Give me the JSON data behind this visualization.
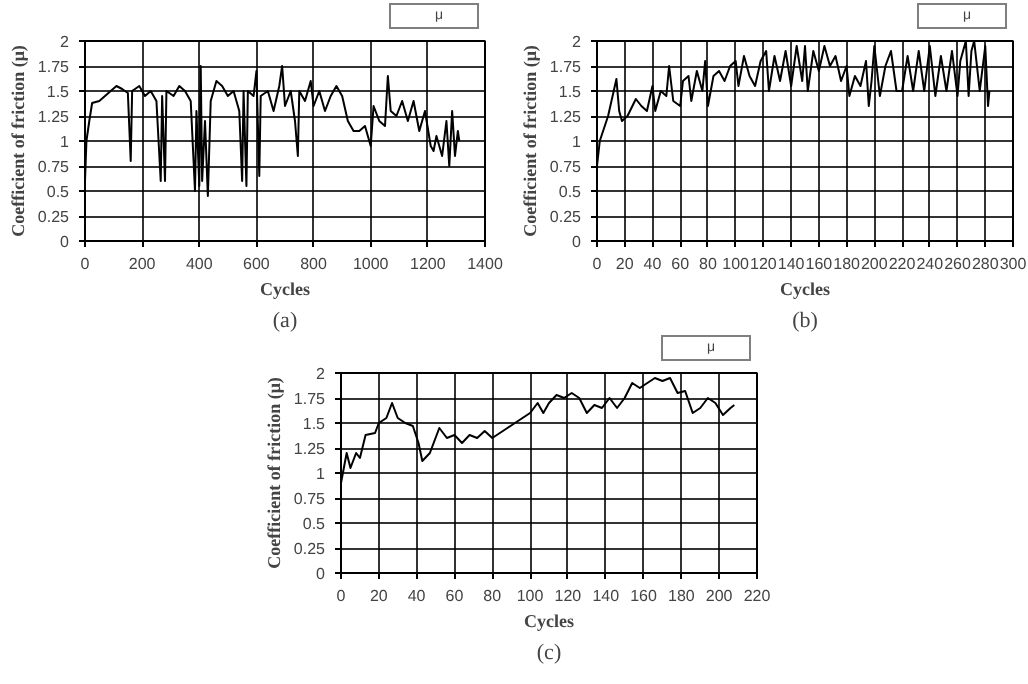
{
  "chart_data": [
    {
      "type": "line",
      "xlabel": "Cycles",
      "ylabel": "Coefficient of friction (μ)",
      "annotations": [
        "(a)"
      ],
      "grid": true,
      "legend": "top right",
      "xlim": [
        0,
        1400
      ],
      "xticks": [
        0,
        200,
        400,
        600,
        800,
        1000,
        1200,
        1400
      ],
      "ylim": [
        0,
        2
      ],
      "yticks": [
        0,
        0.25,
        0.5,
        0.75,
        1,
        1.25,
        1.5,
        1.75,
        2
      ],
      "series": [
        {
          "name": "μ",
          "color": "#000000",
          "x": [
            0,
            5,
            15,
            25,
            50,
            70,
            90,
            110,
            130,
            150,
            160,
            165,
            190,
            210,
            230,
            250,
            265,
            270,
            280,
            285,
            310,
            330,
            350,
            370,
            385,
            390,
            400,
            405,
            410,
            420,
            430,
            440,
            460,
            480,
            500,
            520,
            540,
            550,
            555,
            565,
            570,
            590,
            600,
            610,
            615,
            640,
            660,
            680,
            690,
            700,
            720,
            735,
            745,
            750,
            770,
            790,
            800,
            820,
            840,
            860,
            880,
            900,
            920,
            940,
            960,
            980,
            1000,
            1010,
            1030,
            1050,
            1060,
            1070,
            1090,
            1110,
            1130,
            1150,
            1170,
            1190,
            1210,
            1220,
            1230,
            1250,
            1265,
            1275,
            1285,
            1295,
            1305,
            1310
          ],
          "values": [
            0.6,
            1.0,
            1.2,
            1.38,
            1.4,
            1.45,
            1.5,
            1.55,
            1.52,
            1.48,
            0.8,
            1.5,
            1.55,
            1.45,
            1.5,
            1.4,
            0.6,
            1.45,
            0.6,
            1.5,
            1.45,
            1.55,
            1.5,
            1.4,
            0.5,
            1.3,
            0.55,
            1.75,
            0.6,
            1.2,
            0.45,
            1.4,
            1.6,
            1.55,
            1.45,
            1.5,
            1.3,
            0.6,
            1.5,
            0.55,
            1.5,
            1.45,
            1.7,
            0.65,
            1.45,
            1.5,
            1.3,
            1.55,
            1.75,
            1.35,
            1.5,
            1.2,
            0.85,
            1.5,
            1.4,
            1.6,
            1.35,
            1.5,
            1.3,
            1.45,
            1.55,
            1.45,
            1.2,
            1.1,
            1.1,
            1.15,
            0.95,
            1.35,
            1.2,
            1.15,
            1.65,
            1.3,
            1.25,
            1.4,
            1.2,
            1.4,
            1.1,
            1.3,
            0.95,
            0.9,
            1.05,
            0.85,
            1.2,
            0.75,
            1.3,
            0.85,
            1.1,
            1.0
          ]
        }
      ]
    },
    {
      "type": "line",
      "xlabel": "Cycles",
      "ylabel": "Coefficient of friction (μ)",
      "annotations": [
        "(b)"
      ],
      "grid": true,
      "legend": "top right",
      "xlim": [
        0,
        300
      ],
      "xticks": [
        0,
        20,
        40,
        60,
        80,
        100,
        120,
        140,
        160,
        180,
        200,
        220,
        240,
        260,
        280,
        300
      ],
      "ylim": [
        0,
        2
      ],
      "yticks": [
        0,
        0.25,
        0.5,
        0.75,
        1,
        1.25,
        1.5,
        1.75,
        2
      ],
      "series": [
        {
          "name": "μ",
          "color": "#000000",
          "x": [
            0,
            2,
            8,
            14,
            16,
            18,
            22,
            28,
            32,
            36,
            40,
            42,
            46,
            50,
            52,
            55,
            60,
            62,
            66,
            68,
            72,
            76,
            78,
            80,
            84,
            88,
            92,
            96,
            100,
            102,
            106,
            110,
            114,
            118,
            122,
            124,
            128,
            132,
            136,
            140,
            144,
            148,
            150,
            152,
            156,
            160,
            164,
            168,
            172,
            176,
            180,
            182,
            186,
            190,
            194,
            196,
            198,
            200,
            204,
            208,
            212,
            216,
            220,
            224,
            228,
            232,
            236,
            240,
            244,
            248,
            252,
            256,
            260,
            262,
            266,
            268,
            270,
            272,
            276,
            280,
            282,
            283
          ],
          "values": [
            0.75,
            1.0,
            1.25,
            1.62,
            1.3,
            1.2,
            1.25,
            1.42,
            1.35,
            1.3,
            1.55,
            1.3,
            1.5,
            1.45,
            1.75,
            1.4,
            1.35,
            1.6,
            1.65,
            1.4,
            1.7,
            1.5,
            1.8,
            1.35,
            1.65,
            1.7,
            1.6,
            1.75,
            1.8,
            1.55,
            1.85,
            1.65,
            1.55,
            1.8,
            1.9,
            1.5,
            1.85,
            1.6,
            1.9,
            1.55,
            1.95,
            1.6,
            1.95,
            1.5,
            1.9,
            1.7,
            1.95,
            1.75,
            1.85,
            1.6,
            1.75,
            1.45,
            1.65,
            1.55,
            1.8,
            1.35,
            1.6,
            1.95,
            1.45,
            1.75,
            1.9,
            1.5,
            1.5,
            1.85,
            1.5,
            1.9,
            1.5,
            1.95,
            1.45,
            1.85,
            1.5,
            1.9,
            1.45,
            1.8,
            2.0,
            1.45,
            1.9,
            2.0,
            1.5,
            1.95,
            1.35,
            1.5
          ]
        }
      ]
    },
    {
      "type": "line",
      "xlabel": "Cycles",
      "ylabel": "Coefficient of friction (μ)",
      "annotations": [
        "(c)"
      ],
      "grid": true,
      "legend": "top right",
      "xlim": [
        0,
        220
      ],
      "xticks": [
        0,
        20,
        40,
        60,
        80,
        100,
        120,
        140,
        160,
        180,
        200,
        220
      ],
      "ylim": [
        0,
        2
      ],
      "yticks": [
        0,
        0.25,
        0.5,
        0.75,
        1,
        1.25,
        1.5,
        1.75,
        2
      ],
      "series": [
        {
          "name": "μ",
          "color": "#000000",
          "x": [
            0,
            3,
            5,
            8,
            10,
            13,
            18,
            20,
            24,
            27,
            30,
            34,
            38,
            41,
            43,
            47,
            52,
            56,
            60,
            64,
            68,
            72,
            76,
            80,
            84,
            88,
            92,
            96,
            100,
            104,
            107,
            110,
            114,
            118,
            122,
            126,
            130,
            134,
            138,
            142,
            146,
            150,
            154,
            158,
            162,
            166,
            170,
            174,
            178,
            182,
            186,
            190,
            194,
            198,
            202,
            206,
            208
          ],
          "values": [
            0.9,
            1.2,
            1.05,
            1.2,
            1.15,
            1.38,
            1.4,
            1.5,
            1.55,
            1.7,
            1.55,
            1.5,
            1.47,
            1.3,
            1.12,
            1.2,
            1.45,
            1.35,
            1.38,
            1.3,
            1.38,
            1.35,
            1.42,
            1.35,
            1.4,
            1.45,
            1.5,
            1.55,
            1.6,
            1.7,
            1.6,
            1.7,
            1.78,
            1.75,
            1.8,
            1.75,
            1.6,
            1.68,
            1.65,
            1.75,
            1.65,
            1.75,
            1.9,
            1.85,
            1.9,
            1.95,
            1.92,
            1.95,
            1.8,
            1.82,
            1.6,
            1.65,
            1.75,
            1.7,
            1.58,
            1.65,
            1.68
          ]
        }
      ]
    }
  ]
}
